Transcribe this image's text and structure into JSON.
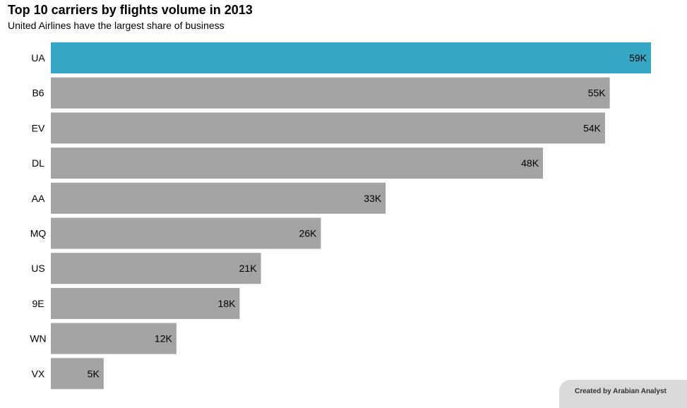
{
  "header": {
    "title": "Top 10 carriers by flights volume in 2013",
    "subtitle": "United Airlines have the largest share of business"
  },
  "footer": {
    "credit": "Created by Arabian Analyst"
  },
  "colors": {
    "highlight": "#35a6c4",
    "bar": "#a3a3a3",
    "credit_bg": "#d9d9d9"
  },
  "chart_data": {
    "type": "bar",
    "orientation": "horizontal",
    "title": "Top 10 carriers by flights volume in 2013",
    "subtitle": "United Airlines have the largest share of business",
    "categories": [
      "UA",
      "B6",
      "EV",
      "DL",
      "AA",
      "MQ",
      "US",
      "9E",
      "WN",
      "VX"
    ],
    "values": [
      58665,
      54635,
      54173,
      48110,
      32729,
      26397,
      20536,
      18460,
      12275,
      5162
    ],
    "data_labels": [
      "59K",
      "55K",
      "54K",
      "48K",
      "33K",
      "26K",
      "21K",
      "18K",
      "12K",
      "5K"
    ],
    "highlight_category": "UA",
    "xlim": [
      0,
      58665
    ],
    "grid": false,
    "legend": "none"
  }
}
